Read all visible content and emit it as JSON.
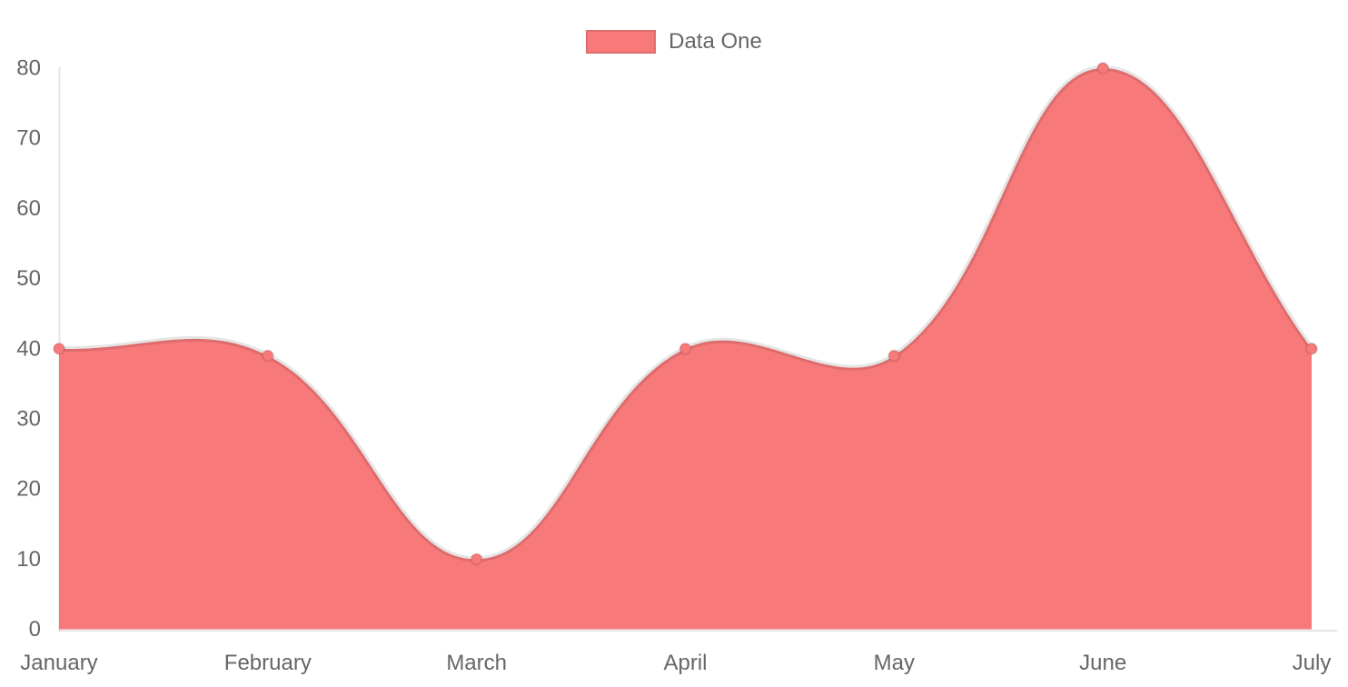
{
  "chart_data": {
    "type": "area",
    "title": "",
    "categories": [
      "January",
      "February",
      "March",
      "April",
      "May",
      "June",
      "July"
    ],
    "series": [
      {
        "name": "Data One",
        "values": [
          40,
          39,
          10,
          40,
          39,
          80,
          40
        ]
      }
    ],
    "xlabel": "",
    "ylabel": "",
    "ylim": [
      0,
      80
    ],
    "ytick_step": 10,
    "yticks": [
      0,
      10,
      20,
      30,
      40,
      50,
      60,
      70,
      80
    ],
    "legend_position": "top",
    "grid": false,
    "line_tension": 0.4,
    "colors": {
      "fill": "#f87979",
      "stroke": "rgba(0,0,0,0.1)",
      "axis": "rgba(0,0,0,0.1)",
      "text": "#666666"
    }
  }
}
